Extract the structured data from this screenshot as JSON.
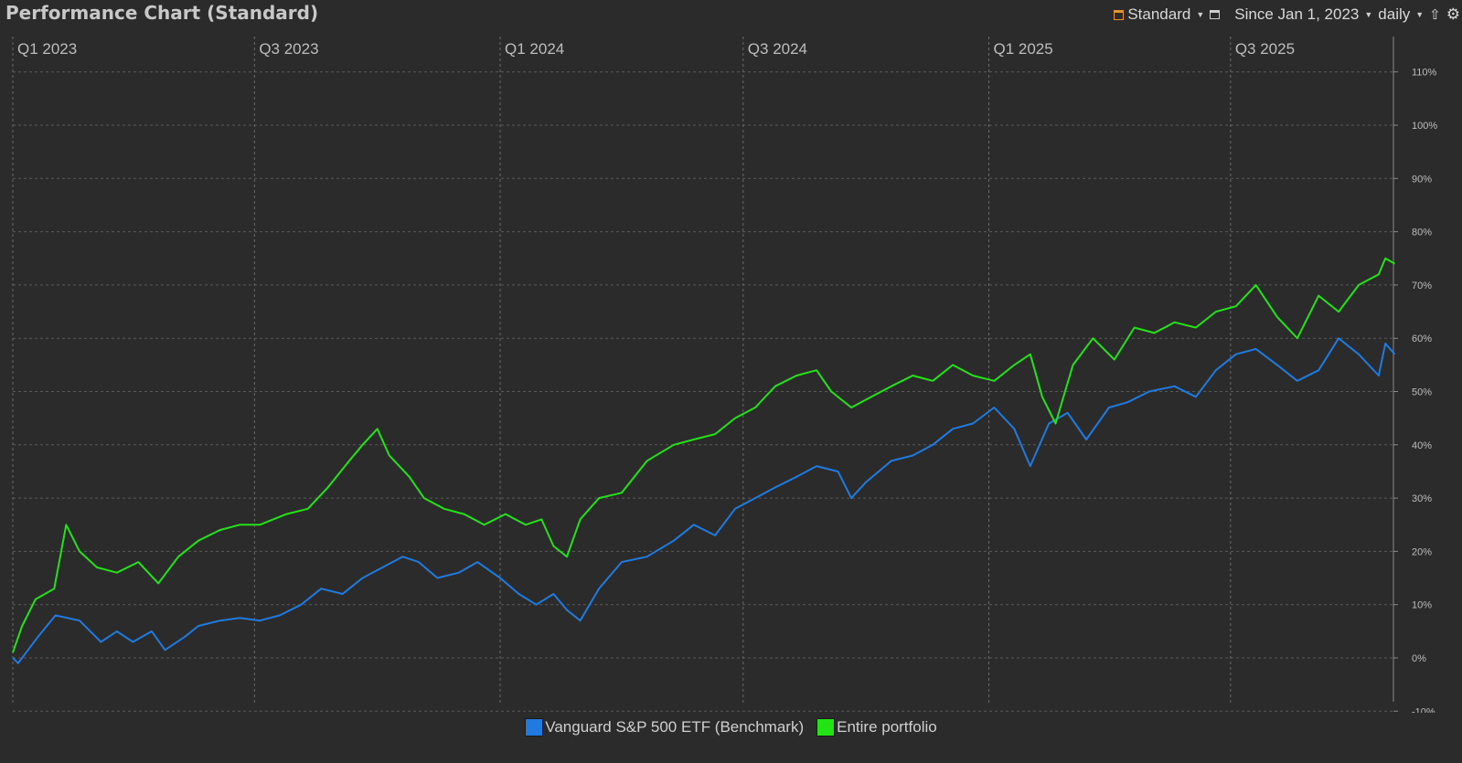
{
  "header": {
    "title": "Performance Chart (Standard)",
    "config_label": "Standard",
    "period_label": "Since Jan 1, 2023",
    "interval_label": "daily",
    "icons": [
      "calendar-icon",
      "window-icon",
      "export-icon",
      "gear-icon"
    ],
    "accent": "#e6932d"
  },
  "chart_data": {
    "type": "line",
    "x_axis": {
      "ticks": [
        "Q1 2023",
        "Q3 2023",
        "Q1 2024",
        "Q3 2024",
        "Q1 2025",
        "Q3 2025"
      ],
      "range": [
        "2023-01-01",
        "2025-10-31"
      ]
    },
    "y_axis": {
      "ticks": [
        "-10%",
        "0%",
        "10%",
        "20%",
        "30%",
        "40%",
        "50%",
        "60%",
        "70%",
        "80%",
        "90%",
        "100%",
        "110%"
      ],
      "range": [
        -10,
        112
      ],
      "position": "right",
      "unit": "%"
    },
    "grid": true,
    "legend_position": "bottom-center",
    "series": [
      {
        "name": "Vanguard S&P 500 ETF (Benchmark)",
        "color": "#1f7be0",
        "points": [
          [
            "2023-01-01",
            0
          ],
          [
            "2023-01-05",
            -1
          ],
          [
            "2023-01-20",
            4
          ],
          [
            "2023-02-02",
            8
          ],
          [
            "2023-02-20",
            7
          ],
          [
            "2023-03-08",
            3
          ],
          [
            "2023-03-20",
            5
          ],
          [
            "2023-04-01",
            3
          ],
          [
            "2023-04-15",
            5
          ],
          [
            "2023-04-25",
            1.5
          ],
          [
            "2023-05-10",
            4
          ],
          [
            "2023-05-20",
            6
          ],
          [
            "2023-06-05",
            7
          ],
          [
            "2023-06-20",
            7.5
          ],
          [
            "2023-07-05",
            7
          ],
          [
            "2023-07-20",
            8
          ],
          [
            "2023-08-05",
            10
          ],
          [
            "2023-08-20",
            13
          ],
          [
            "2023-09-05",
            12
          ],
          [
            "2023-09-20",
            15
          ],
          [
            "2023-10-05",
            17
          ],
          [
            "2023-10-20",
            19
          ],
          [
            "2023-11-01",
            18
          ],
          [
            "2023-11-15",
            15
          ],
          [
            "2023-12-01",
            16
          ],
          [
            "2023-12-15",
            18
          ],
          [
            "2024-01-01",
            15
          ],
          [
            "2024-01-15",
            12
          ],
          [
            "2024-01-28",
            10
          ],
          [
            "2024-02-10",
            12
          ],
          [
            "2024-02-20",
            9
          ],
          [
            "2024-03-01",
            7
          ],
          [
            "2024-03-15",
            13
          ],
          [
            "2024-04-01",
            18
          ],
          [
            "2024-04-20",
            19
          ],
          [
            "2024-05-10",
            22
          ],
          [
            "2024-05-25",
            25
          ],
          [
            "2024-06-10",
            23
          ],
          [
            "2024-06-25",
            28
          ],
          [
            "2024-07-10",
            30
          ],
          [
            "2024-07-25",
            32
          ],
          [
            "2024-08-10",
            34
          ],
          [
            "2024-08-25",
            36
          ],
          [
            "2024-09-10",
            35
          ],
          [
            "2024-09-20",
            30
          ],
          [
            "2024-10-01",
            33
          ],
          [
            "2024-10-20",
            37
          ],
          [
            "2024-11-05",
            38
          ],
          [
            "2024-11-20",
            40
          ],
          [
            "2024-12-05",
            43
          ],
          [
            "2024-12-20",
            44
          ],
          [
            "2025-01-05",
            47
          ],
          [
            "2025-01-20",
            43
          ],
          [
            "2025-02-01",
            36
          ],
          [
            "2025-02-15",
            44
          ],
          [
            "2025-03-01",
            46
          ],
          [
            "2025-03-15",
            41
          ],
          [
            "2025-04-01",
            47
          ],
          [
            "2025-04-15",
            48
          ],
          [
            "2025-05-01",
            50
          ],
          [
            "2025-05-20",
            51
          ],
          [
            "2025-06-05",
            49
          ],
          [
            "2025-06-20",
            54
          ],
          [
            "2025-07-05",
            57
          ],
          [
            "2025-07-20",
            58
          ],
          [
            "2025-08-05",
            55
          ],
          [
            "2025-08-20",
            52
          ],
          [
            "2025-09-05",
            54
          ],
          [
            "2025-09-20",
            60
          ],
          [
            "2025-10-05",
            57
          ],
          [
            "2025-10-20",
            53
          ],
          [
            "2025-10-25",
            59
          ],
          [
            "2025-11-01",
            57
          ]
        ]
      },
      {
        "name": "Entire portfolio",
        "color": "#23e317",
        "points": [
          [
            "2023-01-01",
            1
          ],
          [
            "2023-01-08",
            6
          ],
          [
            "2023-01-18",
            11
          ],
          [
            "2023-02-01",
            13
          ],
          [
            "2023-02-10",
            25
          ],
          [
            "2023-02-20",
            20
          ],
          [
            "2023-03-05",
            17
          ],
          [
            "2023-03-20",
            16
          ],
          [
            "2023-04-05",
            18
          ],
          [
            "2023-04-20",
            14
          ],
          [
            "2023-05-05",
            19
          ],
          [
            "2023-05-20",
            22
          ],
          [
            "2023-06-05",
            24
          ],
          [
            "2023-06-20",
            25
          ],
          [
            "2023-07-05",
            25
          ],
          [
            "2023-07-25",
            27
          ],
          [
            "2023-08-10",
            28
          ],
          [
            "2023-08-25",
            32
          ],
          [
            "2023-09-10",
            37
          ],
          [
            "2023-09-20",
            40
          ],
          [
            "2023-10-01",
            43
          ],
          [
            "2023-10-10",
            38
          ],
          [
            "2023-10-25",
            34
          ],
          [
            "2023-11-05",
            30
          ],
          [
            "2023-11-20",
            28
          ],
          [
            "2023-12-05",
            27
          ],
          [
            "2023-12-20",
            25
          ],
          [
            "2024-01-05",
            27
          ],
          [
            "2024-01-20",
            25
          ],
          [
            "2024-02-01",
            26
          ],
          [
            "2024-02-10",
            21
          ],
          [
            "2024-02-20",
            19
          ],
          [
            "2024-03-01",
            26
          ],
          [
            "2024-03-15",
            30
          ],
          [
            "2024-04-01",
            31
          ],
          [
            "2024-04-20",
            37
          ],
          [
            "2024-05-10",
            40
          ],
          [
            "2024-05-25",
            41
          ],
          [
            "2024-06-10",
            42
          ],
          [
            "2024-06-25",
            45
          ],
          [
            "2024-07-10",
            47
          ],
          [
            "2024-07-25",
            51
          ],
          [
            "2024-08-10",
            53
          ],
          [
            "2024-08-25",
            54
          ],
          [
            "2024-09-05",
            50
          ],
          [
            "2024-09-20",
            47
          ],
          [
            "2024-10-05",
            49
          ],
          [
            "2024-10-20",
            51
          ],
          [
            "2024-11-05",
            53
          ],
          [
            "2024-11-20",
            52
          ],
          [
            "2024-12-05",
            55
          ],
          [
            "2024-12-20",
            53
          ],
          [
            "2025-01-05",
            52
          ],
          [
            "2025-01-20",
            55
          ],
          [
            "2025-02-01",
            57
          ],
          [
            "2025-02-10",
            49
          ],
          [
            "2025-02-20",
            44
          ],
          [
            "2025-03-05",
            55
          ],
          [
            "2025-03-20",
            60
          ],
          [
            "2025-04-05",
            56
          ],
          [
            "2025-04-20",
            62
          ],
          [
            "2025-05-05",
            61
          ],
          [
            "2025-05-20",
            63
          ],
          [
            "2025-06-05",
            62
          ],
          [
            "2025-06-20",
            65
          ],
          [
            "2025-07-05",
            66
          ],
          [
            "2025-07-20",
            70
          ],
          [
            "2025-08-05",
            64
          ],
          [
            "2025-08-20",
            60
          ],
          [
            "2025-09-05",
            68
          ],
          [
            "2025-09-20",
            65
          ],
          [
            "2025-10-05",
            70
          ],
          [
            "2025-10-20",
            72
          ],
          [
            "2025-10-25",
            75
          ],
          [
            "2025-11-01",
            74
          ]
        ]
      }
    ]
  }
}
